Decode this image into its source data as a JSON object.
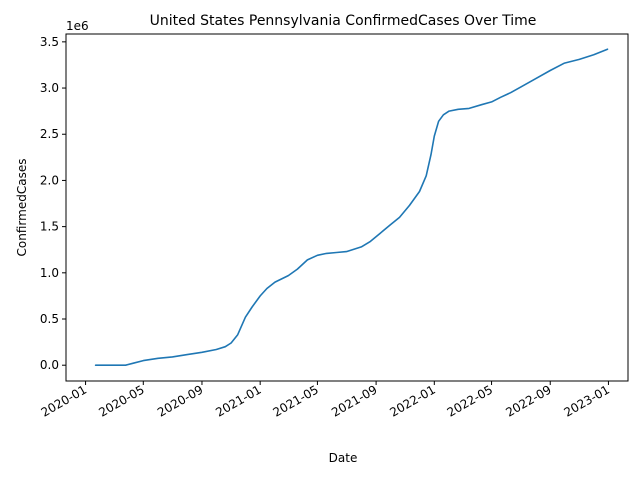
{
  "chart_data": {
    "type": "line",
    "title": "United States Pennsylvania ConfirmedCases Over Time",
    "xlabel": "Date",
    "ylabel": "ConfirmedCases",
    "y_offset_label": "1e6",
    "y_unit_multiplier": 1000000,
    "grid": false,
    "legend": "none",
    "x_range": [
      "2019-11-21",
      "2023-02-11"
    ],
    "ylim": [
      -0.171,
      3.585
    ],
    "x_ticks": [
      {
        "date": "2020-01-01",
        "label": "2020-01"
      },
      {
        "date": "2020-05-01",
        "label": "2020-05"
      },
      {
        "date": "2020-09-01",
        "label": "2020-09"
      },
      {
        "date": "2021-01-01",
        "label": "2021-01"
      },
      {
        "date": "2021-05-01",
        "label": "2021-05"
      },
      {
        "date": "2021-09-01",
        "label": "2021-09"
      },
      {
        "date": "2022-01-01",
        "label": "2022-01"
      },
      {
        "date": "2022-05-01",
        "label": "2022-05"
      },
      {
        "date": "2022-09-01",
        "label": "2022-09"
      },
      {
        "date": "2023-01-01",
        "label": "2023-01"
      }
    ],
    "y_ticks": [
      {
        "value": 0.0,
        "label": "0.0"
      },
      {
        "value": 0.5,
        "label": "0.5"
      },
      {
        "value": 1.0,
        "label": "1.0"
      },
      {
        "value": 1.5,
        "label": "1.5"
      },
      {
        "value": 2.0,
        "label": "2.0"
      },
      {
        "value": 2.5,
        "label": "2.5"
      },
      {
        "value": 3.0,
        "label": "3.0"
      },
      {
        "value": 3.5,
        "label": "3.5"
      }
    ],
    "series": [
      {
        "color": "#1f77b4",
        "x": [
          "2020-01-22",
          "2020-03-01",
          "2020-03-25",
          "2020-04-10",
          "2020-05-01",
          "2020-06-01",
          "2020-07-01",
          "2020-08-01",
          "2020-09-01",
          "2020-10-01",
          "2020-10-20",
          "2020-11-01",
          "2020-11-15",
          "2020-12-01",
          "2020-12-15",
          "2021-01-01",
          "2021-01-15",
          "2021-02-01",
          "2021-03-01",
          "2021-03-20",
          "2021-04-10",
          "2021-05-01",
          "2021-05-20",
          "2021-06-10",
          "2021-07-01",
          "2021-08-01",
          "2021-08-20",
          "2021-09-10",
          "2021-10-01",
          "2021-10-20",
          "2021-11-10",
          "2021-12-01",
          "2021-12-15",
          "2021-12-25",
          "2022-01-01",
          "2022-01-10",
          "2022-01-20",
          "2022-02-01",
          "2022-02-20",
          "2022-03-15",
          "2022-04-10",
          "2022-05-01",
          "2022-05-20",
          "2022-06-10",
          "2022-07-01",
          "2022-08-01",
          "2022-09-01",
          "2022-10-01",
          "2022-11-01",
          "2022-12-01",
          "2022-12-30"
        ],
        "values": [
          0.0,
          0.0,
          0.0,
          0.022,
          0.05,
          0.075,
          0.09,
          0.115,
          0.14,
          0.17,
          0.2,
          0.24,
          0.33,
          0.52,
          0.63,
          0.75,
          0.83,
          0.9,
          0.97,
          1.04,
          1.14,
          1.19,
          1.21,
          1.22,
          1.23,
          1.28,
          1.34,
          1.43,
          1.52,
          1.6,
          1.73,
          1.88,
          2.05,
          2.28,
          2.48,
          2.64,
          2.71,
          2.75,
          2.77,
          2.78,
          2.82,
          2.85,
          2.9,
          2.95,
          3.01,
          3.1,
          3.19,
          3.27,
          3.31,
          3.36,
          3.42
        ]
      }
    ]
  }
}
